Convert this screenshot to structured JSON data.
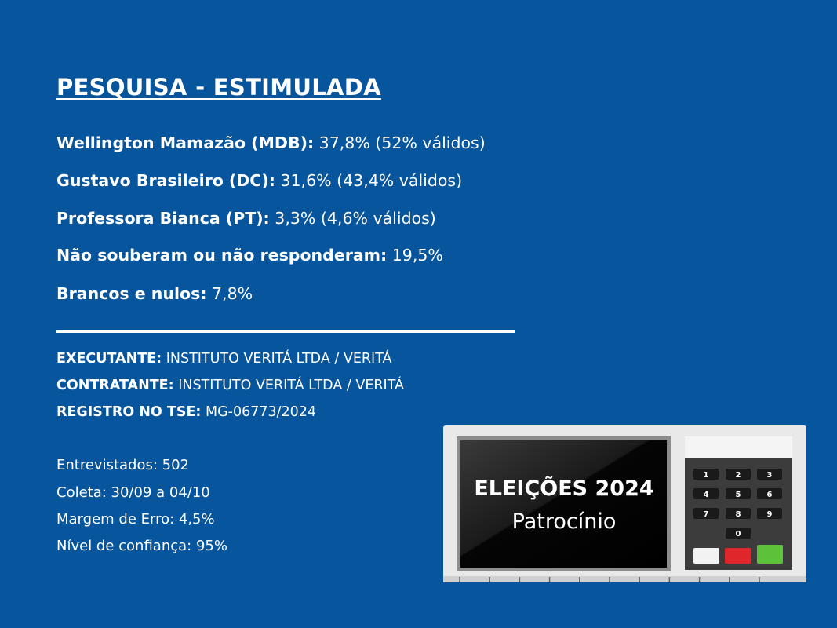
{
  "header": {
    "title": "PESQUISA - ESTIMULADA"
  },
  "results": [
    {
      "label": "Wellington Mamazão (MDB):",
      "value": "37,8% (52% válidos)"
    },
    {
      "label": "Gustavo Brasileiro (DC):",
      "value": "31,6% (43,4% válidos)"
    },
    {
      "label": "Professora Bianca (PT):",
      "value": "3,3% (4,6% válidos)"
    },
    {
      "label": "Não souberam ou não responderam:",
      "value": "19,5%"
    },
    {
      "label": "Brancos e nulos:",
      "value": "7,8%"
    }
  ],
  "registry": [
    {
      "label": "EXECUTANTE:",
      "value": "INSTITUTO VERITÁ LTDA / VERITÁ"
    },
    {
      "label": "CONTRATANTE:",
      "value": "INSTITUTO VERITÁ LTDA / VERITÁ"
    },
    {
      "label": "REGISTRO NO TSE:",
      "value": "MG-06773/2024"
    }
  ],
  "details": [
    "Entrevistados: 502",
    "Coleta: 30/09 a 04/10",
    "Margem de Erro: 4,5%",
    "Nível de confiança: 95%"
  ],
  "ballot_box": {
    "title": "ELEIÇÕES 2024",
    "subtitle": "Patrocínio",
    "keys": [
      "1",
      "2",
      "3",
      "4",
      "5",
      "6",
      "7",
      "8",
      "9",
      "0"
    ]
  }
}
